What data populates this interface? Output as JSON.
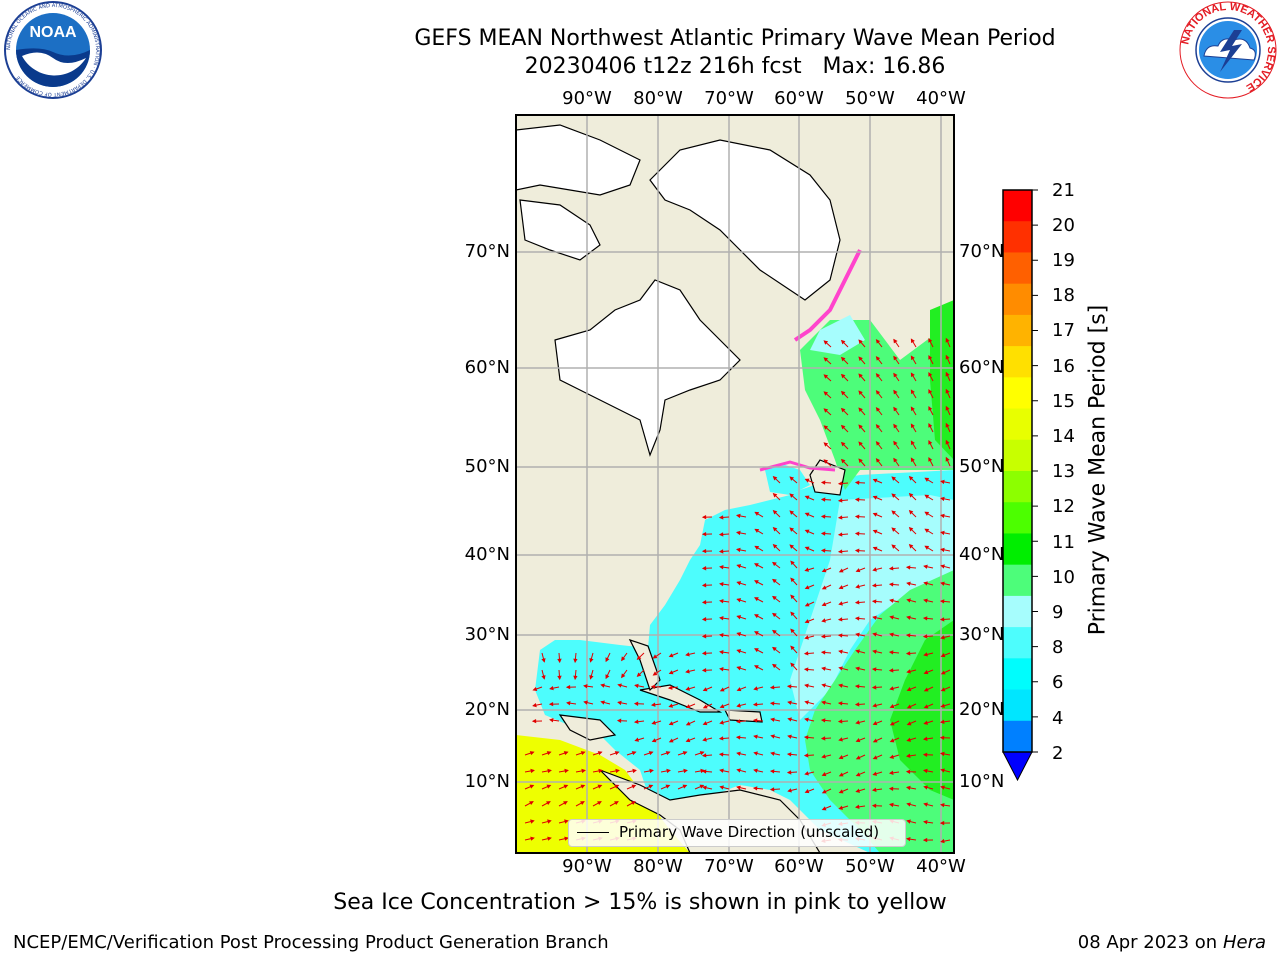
{
  "title": {
    "line1": "GEFS MEAN Northwest Atlantic Primary Wave Mean Period",
    "line2": "20230406 t12z 216h fcst   Max: 16.86"
  },
  "logos": {
    "noaa_text": "NOAA",
    "noaa_ring_text": "NATIONAL OCEANIC AND ATMOSPHERIC ADMINISTRATION · U.S. DEPARTMENT OF COMMERCE",
    "nws_ring_text": "NATIONAL WEATHER SERVICE"
  },
  "map": {
    "lon_labels": [
      "90°W",
      "80°W",
      "70°W",
      "60°W",
      "50°W",
      "40°W"
    ],
    "lat_labels": [
      "70°N",
      "60°N",
      "50°N",
      "40°N",
      "30°N",
      "20°N",
      "10°N"
    ],
    "legend_label": "Primary Wave Direction (unscaled)",
    "colors": {
      "land": "#efeddb",
      "ice_white": "#ffffff",
      "wave_cyan": "#4dfdfd",
      "wave_lightcyan": "#a6fdfd",
      "wave_green": "#4dfd7a",
      "wave_brightgreen": "#22ee22",
      "wave_yellow": "#eeff00",
      "arrows": "#e00000",
      "sea_ice_edge": "#ff44cc",
      "grid": "#b0b0b0"
    }
  },
  "colorbar": {
    "label": "Primary Wave Mean Period [s]",
    "ticks": [
      "21",
      "20",
      "19",
      "18",
      "17",
      "16",
      "15",
      "14",
      "13",
      "12",
      "11",
      "10",
      "9",
      "8",
      "6",
      "4",
      "2"
    ],
    "colors_top_to_bottom": [
      "#ff0000",
      "#ff3000",
      "#ff6000",
      "#ff8c00",
      "#ffb300",
      "#ffe000",
      "#ffff00",
      "#e8ff00",
      "#c8ff00",
      "#8cff00",
      "#4cff00",
      "#00ee00",
      "#4dfd7a",
      "#a6fdfd",
      "#4dfdfd",
      "#00fdfd",
      "#00e6ff",
      "#0080ff"
    ],
    "extend_color": "#0000ff"
  },
  "footnote": "Sea Ice Concentration > 15% is shown in pink to yellow",
  "credit_left": "NCEP/EMC/Verification Post Processing Product Generation Branch",
  "credit_right_prefix": "08 Apr 2023 on ",
  "credit_right_machine": "Hera"
}
